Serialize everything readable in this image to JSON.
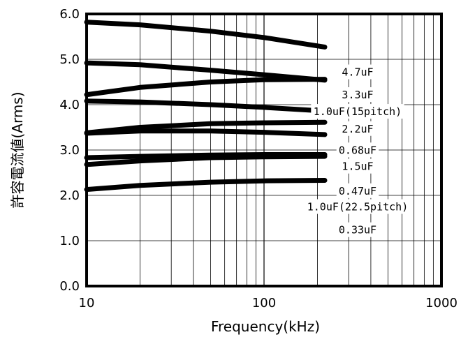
{
  "chart_data": {
    "type": "line",
    "title": "",
    "xlabel": "Frequency(kHz)",
    "ylabel": "許容電流値(Arms)",
    "xscale": "log",
    "xlim": [
      10,
      1000
    ],
    "ylim": [
      0,
      6
    ],
    "grid": true,
    "x_ticks": [
      "10",
      "100",
      "1000"
    ],
    "y_ticks": [
      "0.0",
      "1.0",
      "2.0",
      "3.0",
      "4.0",
      "5.0",
      "6.0"
    ],
    "x": [
      10,
      20,
      50,
      100,
      220
    ],
    "series": [
      {
        "name": "4.7uF",
        "values": [
          5.82,
          5.76,
          5.62,
          5.48,
          5.27
        ]
      },
      {
        "name": "3.3uF",
        "values": [
          4.92,
          4.88,
          4.76,
          4.66,
          4.54
        ]
      },
      {
        "name": "1.0uF(15pitch)",
        "values": [
          4.22,
          4.38,
          4.5,
          4.55,
          4.56
        ]
      },
      {
        "name": "2.2uF",
        "values": [
          4.08,
          4.06,
          4.0,
          3.94,
          3.86
        ]
      },
      {
        "name": "0.68uF",
        "values": [
          3.38,
          3.5,
          3.58,
          3.6,
          3.61
        ]
      },
      {
        "name": "1.5uF",
        "values": [
          3.37,
          3.42,
          3.42,
          3.39,
          3.34
        ]
      },
      {
        "name": "0.47uF",
        "values": [
          2.83,
          2.86,
          2.89,
          2.9,
          2.9
        ]
      },
      {
        "name": "1.0uF(22.5pitch)",
        "values": [
          2.68,
          2.76,
          2.83,
          2.85,
          2.86
        ]
      },
      {
        "name": "0.33uF",
        "values": [
          2.13,
          2.22,
          2.29,
          2.32,
          2.33
        ]
      }
    ]
  }
}
